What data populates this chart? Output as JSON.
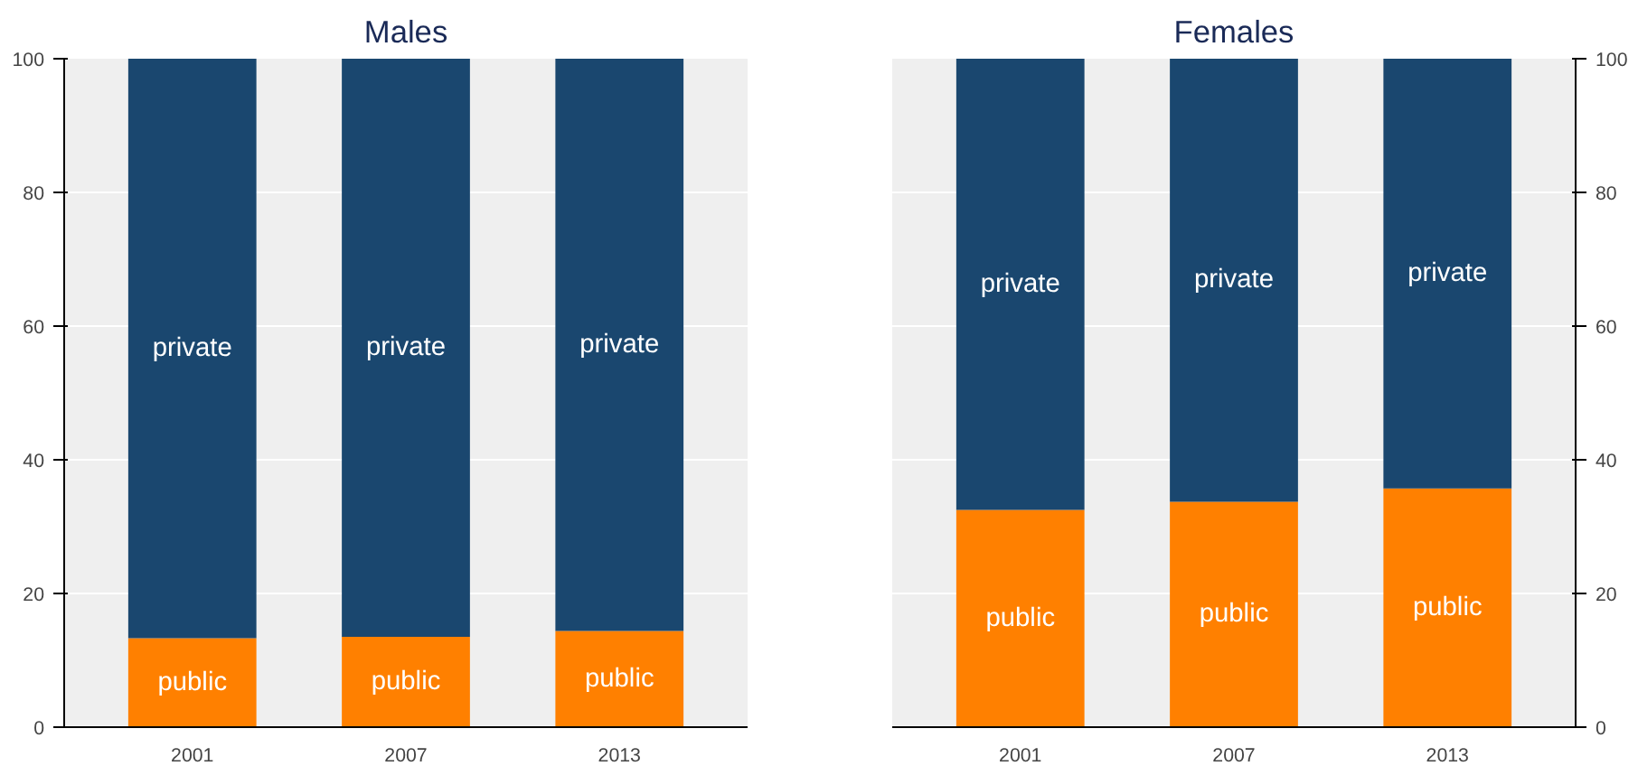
{
  "chart_data": [
    {
      "type": "bar",
      "title": "Males",
      "categories": [
        "2001",
        "2007",
        "2013"
      ],
      "stacked": true,
      "ylim": [
        0,
        100
      ],
      "yticks": [
        0,
        20,
        40,
        60,
        80,
        100
      ],
      "grid": "y",
      "legend": false,
      "series": [
        {
          "name": "public",
          "color": "#ff8000",
          "values": [
            13.3,
            13.5,
            14.4
          ]
        },
        {
          "name": "private",
          "color": "#1a476f",
          "values": [
            86.7,
            86.5,
            85.6
          ]
        }
      ]
    },
    {
      "type": "bar",
      "title": "Females",
      "categories": [
        "2001",
        "2007",
        "2013"
      ],
      "stacked": true,
      "ylim": [
        0,
        100
      ],
      "yticks": [
        0,
        20,
        40,
        60,
        80,
        100
      ],
      "grid": "y",
      "legend": false,
      "series": [
        {
          "name": "public",
          "color": "#ff8000",
          "values": [
            32.5,
            33.7,
            35.7
          ]
        },
        {
          "name": "private",
          "color": "#1a476f",
          "values": [
            67.5,
            66.3,
            64.3
          ]
        }
      ]
    }
  ]
}
